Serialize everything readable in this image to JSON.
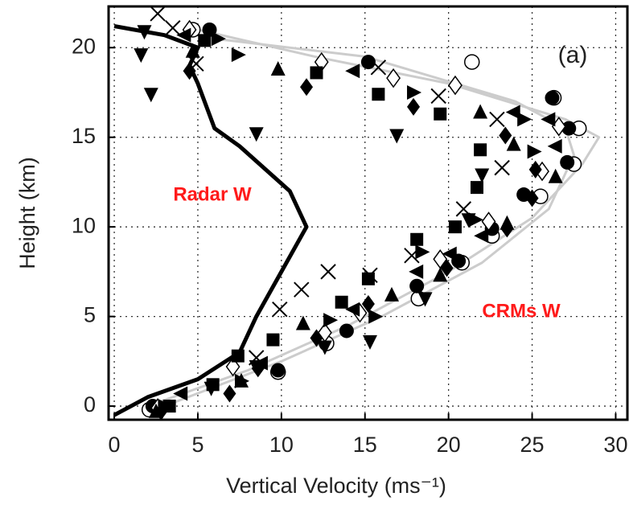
{
  "chart_data": {
    "type": "scatter",
    "xlabel": "Vertical Velocity (ms⁻¹)",
    "ylabel": "Height (km)",
    "annotations": [
      "(a)",
      "Radar W",
      "CRMs W"
    ],
    "annotation_color": "#ff1a1a",
    "xlim": [
      -0.34,
      30.7
    ],
    "ylim": [
      -0.76,
      22.3
    ],
    "xticks": [
      0,
      5,
      10,
      15,
      20,
      25,
      30
    ],
    "yticks": [
      0,
      5,
      10,
      15,
      20
    ],
    "grid": true,
    "series": [
      {
        "type": "line",
        "color": "#cccccc",
        "width": 3,
        "x": [
          2,
          8,
          14,
          20,
          25,
          28,
          29,
          27,
          20,
          12,
          5
        ],
        "y": [
          0,
          2,
          4.5,
          7.5,
          10.5,
          13.5,
          15,
          16,
          18,
          19.5,
          21
        ]
      },
      {
        "type": "line",
        "color": "#cccccc",
        "width": 3,
        "x": [
          3,
          10,
          16,
          22,
          26,
          27.5,
          27,
          24,
          15,
          6
        ],
        "y": [
          0,
          2.5,
          5,
          8,
          11,
          14,
          15.5,
          17,
          19.5,
          20.5
        ]
      },
      {
        "marker": "circle-open",
        "color": "#000000",
        "x": [
          2.1,
          9.8,
          12.7,
          18.2,
          20.8,
          22.6,
          25.5,
          27.5,
          27.8,
          26.3,
          21.4,
          4.7
        ],
        "y": [
          -0.2,
          1.9,
          3.5,
          6,
          8,
          9.5,
          11.7,
          13.5,
          15.5,
          17.2,
          19.2,
          21
        ]
      },
      {
        "marker": "circle",
        "color": "#000000",
        "x": [
          2.3,
          9.8,
          13.9,
          18.1,
          20.6,
          22.6,
          24.5,
          27.1,
          27.2,
          26.2,
          15.2,
          5.7
        ],
        "y": [
          0,
          2,
          4.2,
          6.7,
          8.1,
          9.9,
          11.8,
          13.6,
          15.5,
          17.2,
          19.2,
          21
        ]
      },
      {
        "marker": "diamond-open",
        "color": "#000000",
        "x": [
          2.6,
          7.1,
          12.6,
          14.7,
          19.5,
          22.4,
          25.6,
          26.6,
          20.4,
          16.7,
          12.4,
          4.5
        ],
        "y": [
          -0.1,
          2.2,
          4.1,
          5.2,
          8.2,
          10.3,
          13.1,
          15.6,
          17.9,
          18.3,
          19.2,
          21
        ]
      },
      {
        "marker": "diamond",
        "color": "#000000",
        "x": [
          2.8,
          6.9,
          8.6,
          12.1,
          15.2,
          19.9,
          23.5,
          25,
          25.2,
          23.4,
          17.9,
          11.5,
          4.5
        ],
        "y": [
          -0.3,
          0.7,
          2.1,
          3.8,
          5.7,
          7.7,
          9.9,
          11.6,
          13.2,
          15.1,
          16.7,
          17.8,
          18.7
        ]
      },
      {
        "marker": "square",
        "color": "#000000",
        "x": [
          3.3,
          5.9,
          7.4,
          9.5,
          13.6,
          15.2,
          18.1,
          20.4,
          21.7,
          21.9,
          19.5,
          15.8,
          12.1,
          5.4
        ],
        "y": [
          0,
          1.2,
          2.8,
          3.7,
          5.8,
          7.1,
          9.3,
          10,
          12.2,
          14.3,
          16.3,
          17.4,
          18.6,
          20.4
        ]
      },
      {
        "marker": "triangle-up",
        "color": "#000000",
        "x": [
          2.5,
          7.6,
          11.3,
          16.6,
          19.5,
          23.5,
          26.4,
          23.9,
          21.9,
          9.8,
          4.7
        ],
        "y": [
          -0.3,
          1.4,
          4.6,
          6.2,
          7.3,
          10.2,
          12.8,
          14.6,
          16.4,
          18.8,
          19.8
        ]
      },
      {
        "marker": "triangle-down",
        "color": "#000000",
        "x": [
          1.8,
          1.6,
          2.2,
          8.5,
          16.9,
          22,
          21.2,
          18.6,
          15.3,
          12.6,
          8.5,
          5.8
        ],
        "y": [
          20.9,
          19.6,
          17.4,
          15.2,
          15.1,
          12.9,
          10.4,
          6,
          3.6,
          3.3,
          2.2,
          1
        ]
      },
      {
        "marker": "triangle-right",
        "color": "#000000",
        "x": [
          3,
          7.6,
          12.9,
          15.6,
          18.4,
          21.6,
          25.1,
          24.5,
          17.9,
          7.4,
          6.2
        ],
        "y": [
          0,
          1.4,
          4.8,
          5,
          8.6,
          10.4,
          14.2,
          16,
          17.5,
          19.6,
          20.5
        ]
      },
      {
        "marker": "triangle-left",
        "color": "#000000",
        "x": [
          4,
          8.8,
          14.3,
          18.1,
          20.1,
          22,
          26.4,
          26,
          23.9,
          14.3,
          4.2
        ],
        "y": [
          0.7,
          2.4,
          5.4,
          7.5,
          8.5,
          9.5,
          14.5,
          16,
          16.4,
          18.7,
          20.7
        ]
      },
      {
        "marker": "cross",
        "color": "#000000",
        "x": [
          2.6,
          3.5,
          4.9,
          8.5,
          9.9,
          11.2,
          12.8,
          15.3,
          17.8,
          20.9,
          23.2,
          22.9,
          19.4,
          15.8
        ],
        "y": [
          21.9,
          21.1,
          19.1,
          2.7,
          5.4,
          6.5,
          7.5,
          7.3,
          8.4,
          11,
          13.3,
          16,
          17.3,
          18.9
        ]
      },
      {
        "type": "line",
        "color": "#000000",
        "width": 5,
        "x": [
          0,
          2,
          5,
          7.5,
          8.5,
          10,
          11.5,
          10.5,
          7.5,
          6,
          5,
          4.5,
          5,
          3,
          0
        ],
        "y": [
          -0.5,
          0.5,
          1.5,
          3,
          5,
          7.5,
          10,
          12,
          14.5,
          15.5,
          18,
          19,
          20,
          20.7,
          21.2
        ]
      }
    ]
  }
}
